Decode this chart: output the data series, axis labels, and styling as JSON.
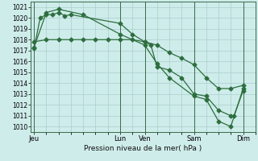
{
  "bg_color": "#ceecea",
  "grid_color": "#aacfcc",
  "line_color": "#2d6e3e",
  "xlabel": "Pression niveau de la mer( hPa )",
  "ylim": [
    1009.5,
    1021.5
  ],
  "yticks": [
    1010,
    1011,
    1012,
    1013,
    1014,
    1015,
    1016,
    1017,
    1018,
    1019,
    1020,
    1021
  ],
  "xtick_labels": [
    "Jeu",
    "Lun",
    "Ven",
    "Sam",
    "Dim"
  ],
  "xtick_positions": [
    0,
    28,
    36,
    52,
    68
  ],
  "vline_positions": [
    0,
    28,
    36,
    52,
    68
  ],
  "xlim": [
    -1,
    72
  ],
  "series1_x": [
    0,
    4,
    8,
    12,
    16,
    20,
    24,
    28,
    32,
    36,
    40,
    44,
    48,
    52,
    56,
    60,
    64,
    68
  ],
  "series1_y": [
    1017.8,
    1018.0,
    1018.0,
    1018.0,
    1018.0,
    1018.0,
    1018.0,
    1018.0,
    1018.0,
    1017.8,
    1017.5,
    1016.8,
    1016.3,
    1015.7,
    1014.5,
    1013.5,
    1013.5,
    1013.8
  ],
  "series2_x": [
    0,
    2,
    4,
    6,
    8,
    10,
    12,
    28,
    32,
    36,
    38,
    40,
    44,
    48,
    52,
    56,
    60,
    64,
    65,
    68
  ],
  "series2_y": [
    1017.2,
    1020.0,
    1020.3,
    1020.3,
    1020.5,
    1020.2,
    1020.3,
    1019.5,
    1018.5,
    1017.8,
    1017.5,
    1015.5,
    1015.2,
    1014.5,
    1013.0,
    1012.8,
    1011.5,
    1011.0,
    1011.0,
    1013.3
  ],
  "series3_x": [
    0,
    4,
    8,
    16,
    28,
    36,
    40,
    44,
    52,
    56,
    60,
    64,
    68
  ],
  "series3_y": [
    1017.3,
    1020.5,
    1020.8,
    1020.3,
    1018.5,
    1017.5,
    1015.8,
    1014.5,
    1012.8,
    1012.5,
    1010.5,
    1010.0,
    1013.5
  ],
  "marker_size": 2.5,
  "linewidth": 0.9
}
